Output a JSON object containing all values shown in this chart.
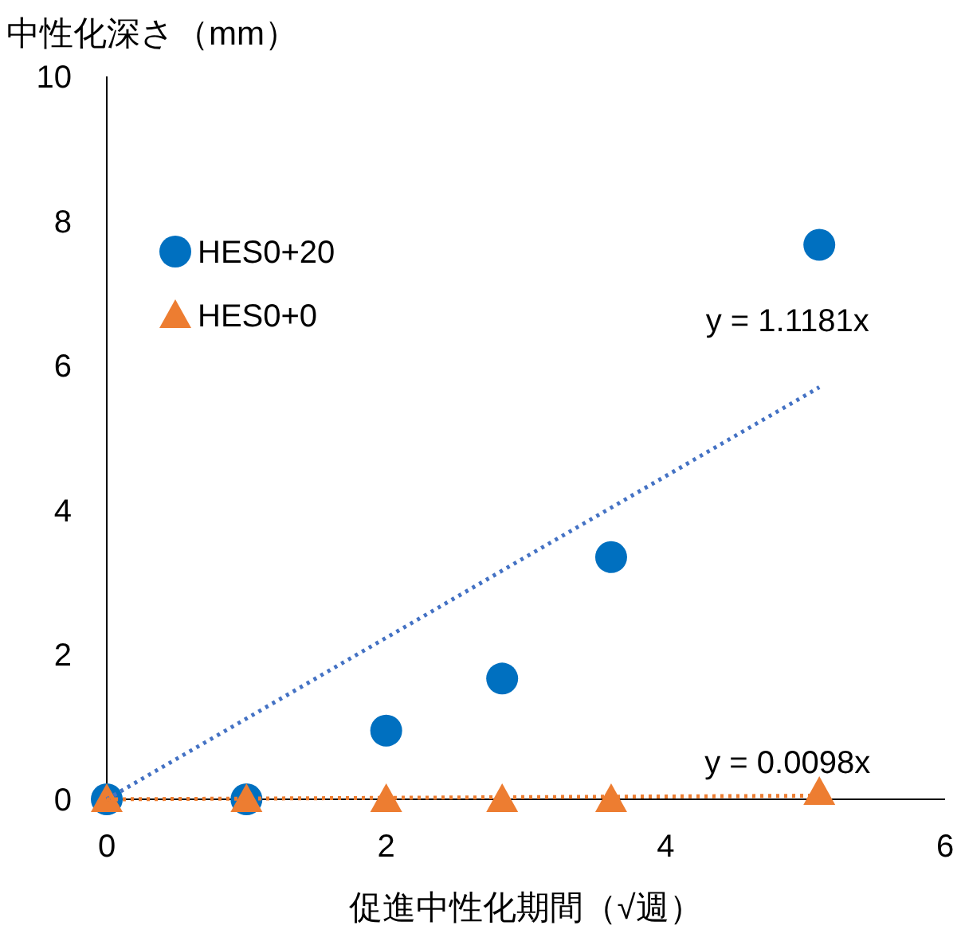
{
  "chart_data": {
    "type": "scatter",
    "ylabel": "中性化深さ（mm）",
    "xlabel": "促進中性化期間（√週）",
    "xlim": [
      0,
      6
    ],
    "ylim": [
      0,
      10
    ],
    "xticks": [
      0,
      2,
      4,
      6
    ],
    "yticks": [
      0,
      2,
      4,
      6,
      8,
      10
    ],
    "grid": false,
    "legend": "top left",
    "series": [
      {
        "name": "HES0+20",
        "color": "#0070c0",
        "marker": "circle",
        "x": [
          0,
          1,
          2,
          2.83,
          3.61,
          5.1
        ],
        "values": [
          0,
          0,
          0.95,
          1.67,
          3.35,
          7.67
        ]
      },
      {
        "name": "HES0+0",
        "color": "#ed7d31",
        "marker": "triangle",
        "x": [
          0,
          1,
          2,
          2.83,
          3.61,
          5.1
        ],
        "values": [
          0,
          0,
          0,
          0,
          0,
          0.1
        ]
      },
      {
        "type": "line",
        "color": "#4472c4",
        "line_style": "dotted",
        "x": [
          0,
          5.1
        ],
        "values": [
          0,
          5.7
        ]
      },
      {
        "type": "line",
        "color": "#ed7d31",
        "line_style": "dotted",
        "x": [
          0,
          5.1
        ],
        "values": [
          0,
          0.05
        ]
      }
    ],
    "annotations": [
      "y = 1.1181x",
      "y = 0.0098x"
    ]
  }
}
